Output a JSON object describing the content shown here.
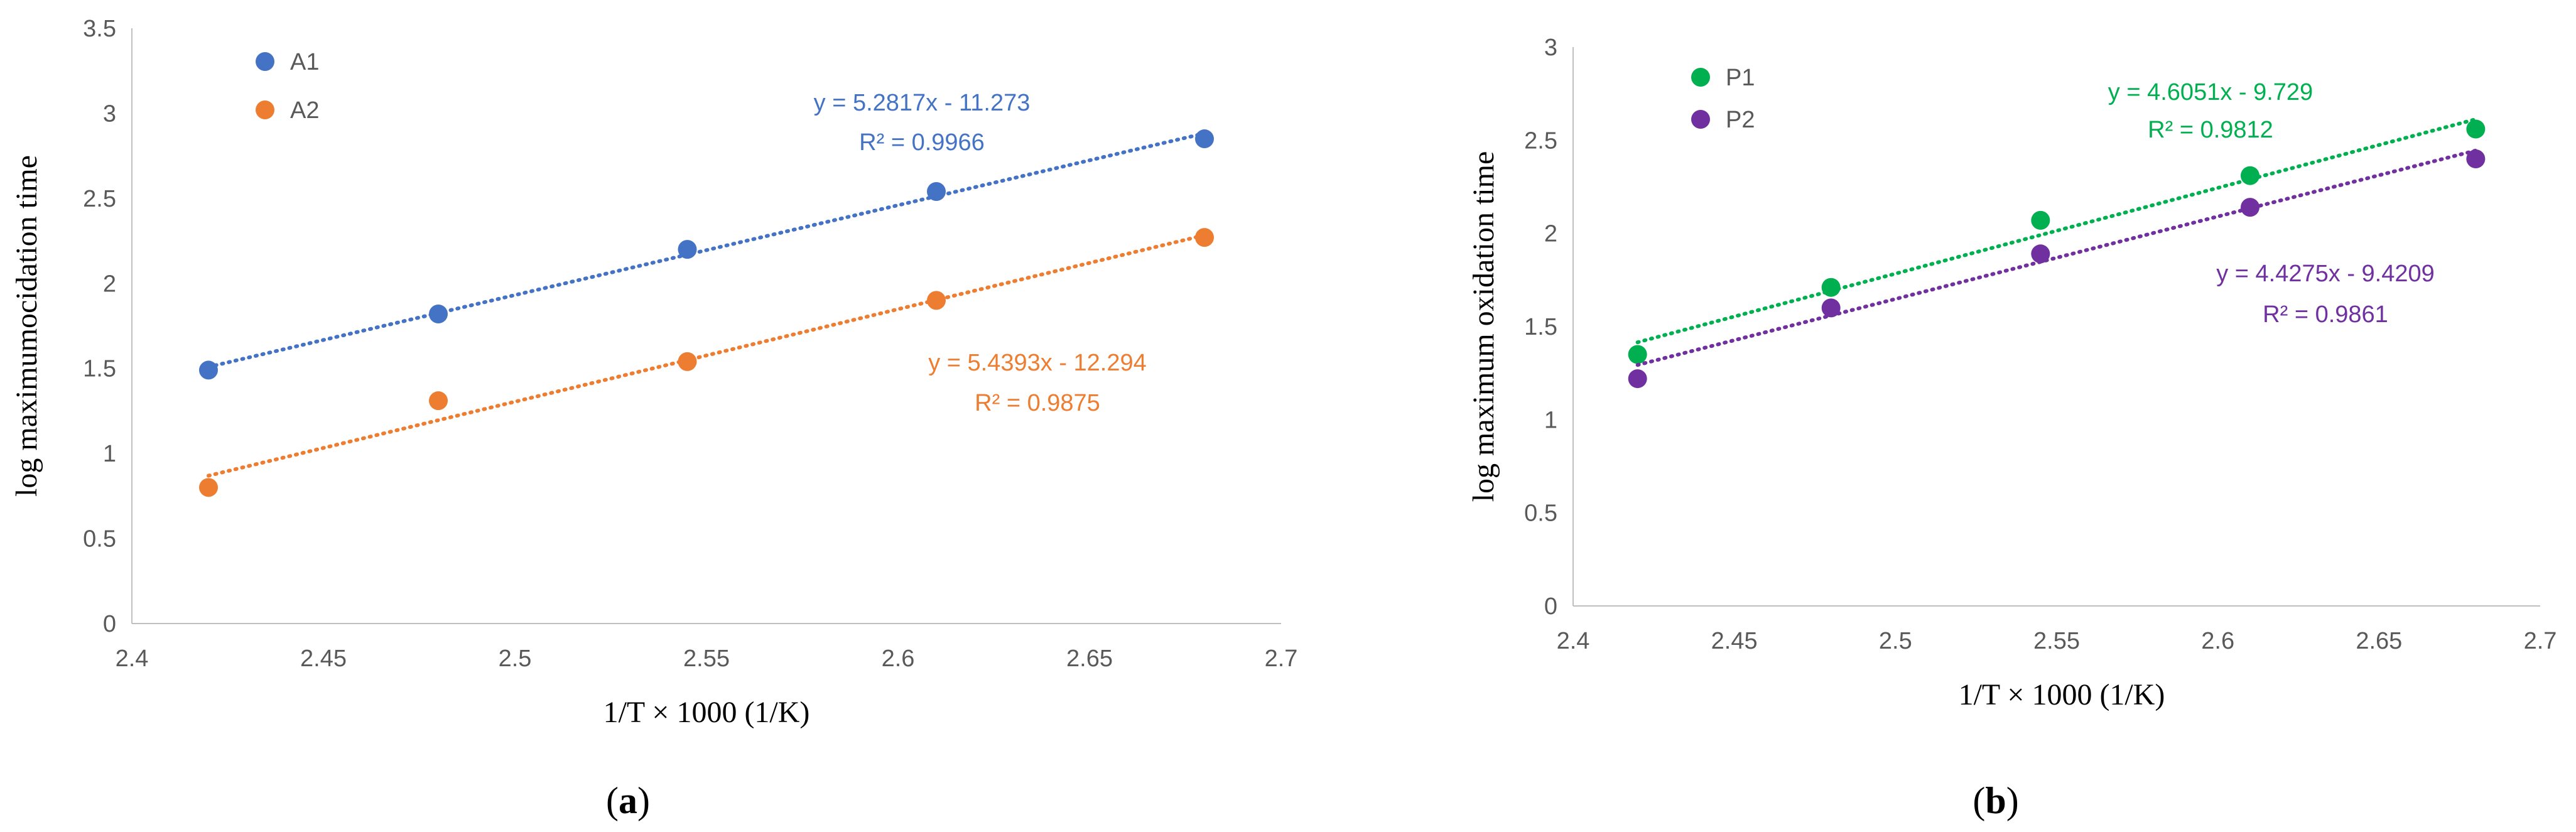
{
  "chart_data": [
    {
      "type": "scatter",
      "panel_label": "a",
      "xlabel": "1/T × 1000 (1/K)",
      "ylabel": "log maximumocidation time",
      "xlim": [
        2.4,
        2.7
      ],
      "ylim": [
        0,
        3.5
      ],
      "x_ticks": [
        "2.4",
        "2.45",
        "2.5",
        "2.55",
        "2.6",
        "2.65",
        "2.7"
      ],
      "y_ticks": [
        "0",
        "0.5",
        "1",
        "1.5",
        "2",
        "2.5",
        "3",
        "3.5"
      ],
      "grid": false,
      "legend_position": "top-left",
      "series": [
        {
          "name": "A1",
          "color": "#4472C4",
          "x": [
            2.42,
            2.48,
            2.545,
            2.61,
            2.68
          ],
          "y": [
            1.49,
            1.82,
            2.2,
            2.54,
            2.85
          ],
          "trendline": {
            "slope": 5.2817,
            "intercept": -11.273
          },
          "equation": "y = 5.2817x - 11.273",
          "r2": "R² = 0.9966"
        },
        {
          "name": "A2",
          "color": "#ED7D31",
          "x": [
            2.42,
            2.48,
            2.545,
            2.61,
            2.68
          ],
          "y": [
            0.8,
            1.31,
            1.54,
            1.9,
            2.27
          ],
          "trendline": {
            "slope": 5.4393,
            "intercept": -12.294
          },
          "equation": "y = 5.4393x - 12.294",
          "r2": "R² = 0.9875"
        }
      ]
    },
    {
      "type": "scatter",
      "panel_label": "b",
      "xlabel": "1/T × 1000 (1/K)",
      "ylabel": "log maximum oxidation time",
      "xlim": [
        2.4,
        2.7
      ],
      "ylim": [
        0,
        3
      ],
      "x_ticks": [
        "2.4",
        "2.45",
        "2.5",
        "2.55",
        "2.6",
        "2.65",
        "2.7"
      ],
      "y_ticks": [
        "0",
        "0.5",
        "1",
        "1.5",
        "2",
        "2.5",
        "3"
      ],
      "grid": false,
      "legend_position": "top-left",
      "series": [
        {
          "name": "P1",
          "color": "#00B050",
          "x": [
            2.42,
            2.48,
            2.545,
            2.61,
            2.68
          ],
          "y": [
            1.35,
            1.71,
            2.07,
            2.31,
            2.56
          ],
          "trendline": {
            "slope": 4.6051,
            "intercept": -9.729
          },
          "equation": "y = 4.6051x - 9.729",
          "r2": "R² = 0.9812"
        },
        {
          "name": "P2",
          "color": "#7030A0",
          "x": [
            2.42,
            2.48,
            2.545,
            2.61,
            2.68
          ],
          "y": [
            1.22,
            1.6,
            1.89,
            2.14,
            2.4
          ],
          "trendline": {
            "slope": 4.4275,
            "intercept": -9.4209
          },
          "equation": "y = 4.4275x - 9.4209",
          "r2": "R² = 0.9861"
        }
      ]
    }
  ]
}
